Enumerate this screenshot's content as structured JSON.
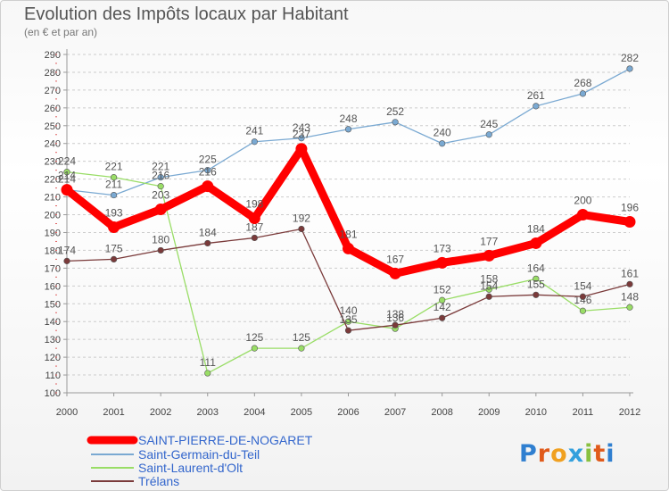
{
  "chart_data": {
    "type": "line",
    "title": "Evolution des Impôts locaux par Habitant",
    "subtitle": "(en € et par an)",
    "x": [
      "2000",
      "2001",
      "2002",
      "2003",
      "2004",
      "2005",
      "2006",
      "2007",
      "2008",
      "2009",
      "2010",
      "2011",
      "2012"
    ],
    "ylim": [
      100,
      290
    ],
    "yticks": [
      100,
      110,
      120,
      130,
      140,
      150,
      160,
      170,
      180,
      190,
      200,
      210,
      220,
      230,
      240,
      250,
      260,
      270,
      280,
      290
    ],
    "series": [
      {
        "name": "SAINT-PIERRE-DE-NOGARET",
        "color": "#ff0000",
        "values": [
          214,
          193,
          203,
          216,
          198,
          237,
          181,
          167,
          173,
          177,
          184,
          200,
          196
        ],
        "labels": [
          "214",
          "193",
          "203",
          "216",
          "198",
          "237",
          "181",
          "167",
          "173",
          "177",
          "184",
          "200",
          "196"
        ]
      },
      {
        "name": "Saint-Germain-du-Teil",
        "color": "#7aa9d2",
        "values": [
          214,
          211,
          221,
          225,
          241,
          243,
          248,
          252,
          240,
          245,
          261,
          268,
          282
        ],
        "labels": [
          "214",
          "211",
          "221",
          "225",
          "241",
          "243",
          "248",
          "252",
          "240",
          "245",
          "261",
          "268",
          "282"
        ]
      },
      {
        "name": "Saint-Laurent-d'Olt",
        "color": "#99dd66",
        "values": [
          224,
          221,
          216,
          111,
          125,
          125,
          140,
          136,
          152,
          158,
          164,
          146,
          148
        ],
        "labels": [
          "224",
          "221",
          "216",
          "111",
          "125",
          "125",
          "140",
          "136",
          "152",
          "158",
          "164",
          "146",
          "148"
        ]
      },
      {
        "name": "Trélans",
        "color": "#7a3a3a",
        "values": [
          174,
          175,
          180,
          184,
          187,
          192,
          135,
          138,
          142,
          154,
          155,
          154,
          161
        ],
        "labels": [
          "174",
          "175",
          "180",
          "184",
          "187",
          "192",
          "135",
          "138",
          "142",
          "154",
          "155",
          "154",
          "161"
        ]
      }
    ]
  },
  "branding": {
    "logo_text": "Proxiti"
  }
}
